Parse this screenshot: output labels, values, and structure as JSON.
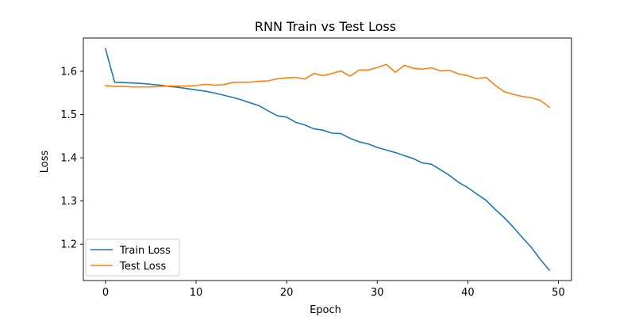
{
  "chart_data": {
    "type": "line",
    "title": "RNN Train vs Test Loss",
    "xlabel": "Epoch",
    "ylabel": "Loss",
    "xlim": [
      -2.45,
      51.45
    ],
    "ylim": [
      1.116,
      1.677
    ],
    "xticks": [
      0,
      10,
      20,
      30,
      40,
      50
    ],
    "yticks": [
      1.2,
      1.3,
      1.4,
      1.5,
      1.6
    ],
    "legend_position": "lower-left",
    "grid": false,
    "x": [
      0,
      1,
      2,
      3,
      4,
      5,
      6,
      7,
      8,
      9,
      10,
      11,
      12,
      13,
      14,
      15,
      16,
      17,
      18,
      19,
      20,
      21,
      22,
      23,
      24,
      25,
      26,
      27,
      28,
      29,
      30,
      31,
      32,
      33,
      34,
      35,
      36,
      37,
      38,
      39,
      40,
      41,
      42,
      43,
      44,
      45,
      46,
      47,
      48,
      49
    ],
    "series": [
      {
        "name": "Train Loss",
        "color": "#1f77b4",
        "values": [
          1.652,
          1.575,
          1.574,
          1.573,
          1.572,
          1.57,
          1.568,
          1.565,
          1.563,
          1.56,
          1.557,
          1.554,
          1.55,
          1.545,
          1.54,
          1.534,
          1.527,
          1.52,
          1.508,
          1.497,
          1.494,
          1.482,
          1.476,
          1.467,
          1.464,
          1.457,
          1.456,
          1.445,
          1.437,
          1.432,
          1.424,
          1.418,
          1.412,
          1.405,
          1.398,
          1.388,
          1.385,
          1.372,
          1.359,
          1.343,
          1.331,
          1.316,
          1.302,
          1.281,
          1.262,
          1.24,
          1.216,
          1.193,
          1.165,
          1.14
        ]
      },
      {
        "name": "Test Loss",
        "color": "#ff7f0e",
        "values": [
          1.567,
          1.565,
          1.565,
          1.564,
          1.564,
          1.564,
          1.565,
          1.566,
          1.566,
          1.566,
          1.567,
          1.57,
          1.568,
          1.569,
          1.574,
          1.575,
          1.575,
          1.577,
          1.578,
          1.583,
          1.585,
          1.586,
          1.582,
          1.595,
          1.59,
          1.595,
          1.601,
          1.589,
          1.603,
          1.603,
          1.609,
          1.616,
          1.598,
          1.614,
          1.607,
          1.605,
          1.608,
          1.601,
          1.602,
          1.594,
          1.59,
          1.583,
          1.586,
          1.568,
          1.553,
          1.547,
          1.542,
          1.539,
          1.533,
          1.517
        ]
      }
    ]
  }
}
